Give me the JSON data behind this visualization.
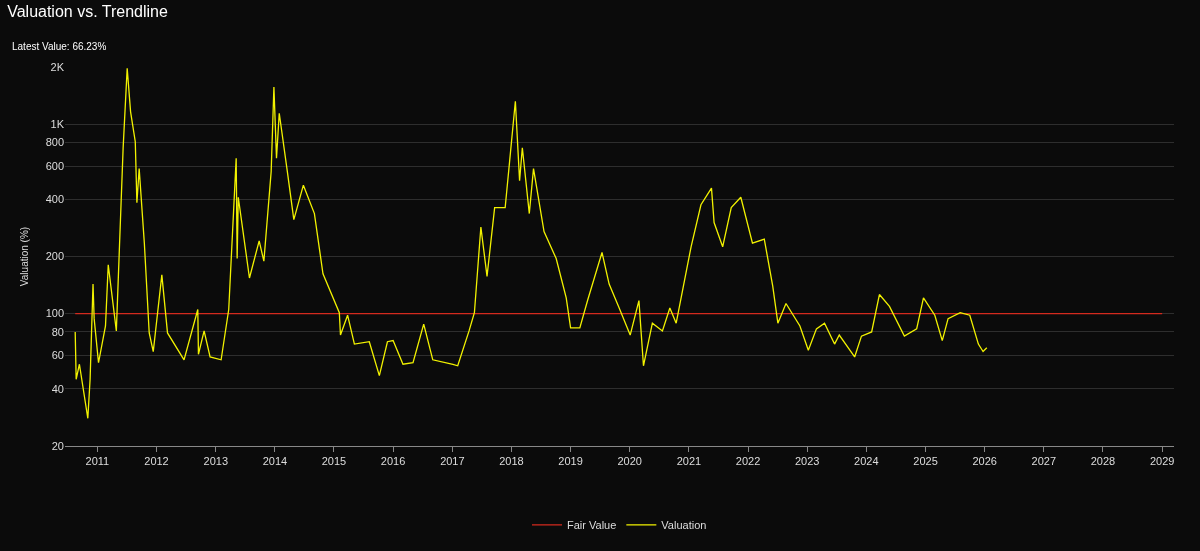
{
  "chart_data": {
    "type": "line",
    "title": "Valuation vs. Trendline",
    "subtitle": "Latest Value: 66.23%",
    "ylabel": "Valuation (%)",
    "log": "y",
    "grid": "y",
    "legend": "bottom",
    "marker": "none",
    "line_style": "solid",
    "xlim": [
      "2010-06-15",
      "2029-03-15"
    ],
    "xticks": [
      "2011",
      "2012",
      "2013",
      "2014",
      "2015",
      "2016",
      "2017",
      "2018",
      "2019",
      "2020",
      "2021",
      "2022",
      "2023",
      "2024",
      "2025",
      "2026",
      "2027",
      "2028",
      "2029"
    ],
    "ylim": [
      20,
      2000
    ],
    "yticks": [
      20,
      40,
      60,
      80,
      100,
      200,
      400,
      600,
      800,
      {
        "value": 1000,
        "label": "1K"
      },
      {
        "value": 2000,
        "label": "2K"
      }
    ],
    "series": [
      {
        "name": "Fair Value",
        "color": "#d42a1e",
        "x": [
          "2010-08-17",
          "2029-01-01"
        ],
        "values": [
          100,
          100
        ]
      },
      {
        "name": "Valuation",
        "color": "#f2f200",
        "x": [
          "2010-08-17",
          "2010-08-23",
          "2010-09-12",
          "2010-11-03",
          "2010-11-17",
          "2010-12-05",
          "2010-12-12",
          "2011-01-08",
          "2011-02-20",
          "2011-03-09",
          "2011-04-28",
          "2011-06-09",
          "2011-07-04",
          "2011-07-25",
          "2011-08-23",
          "2011-09-02",
          "2011-09-16",
          "2011-10-18",
          "2011-11-17",
          "2011-12-12",
          "2012-02-03",
          "2012-03-09",
          "2012-06-19",
          "2012-09-12",
          "2012-09-16",
          "2012-10-21",
          "2012-11-27",
          "2013-02-03",
          "2013-03-22",
          "2013-05-07",
          "2013-05-13",
          "2013-05-20",
          "2013-07-28",
          "2013-09-26",
          "2013-10-25",
          "2013-12-09",
          "2013-12-26",
          "2014-01-11",
          "2014-01-28",
          "2014-03-19",
          "2014-04-28",
          "2014-06-26",
          "2014-09-02",
          "2014-10-25",
          "2015-02-03",
          "2015-02-10",
          "2015-03-26",
          "2015-05-07",
          "2015-08-07",
          "2015-10-08",
          "2015-11-27",
          "2016-01-01",
          "2016-03-02",
          "2016-05-03",
          "2016-07-08",
          "2016-09-02",
          "2017-01-04",
          "2017-02-03",
          "2017-04-14",
          "2017-05-17",
          "2017-06-26",
          "2017-08-03",
          "2017-09-19",
          "2017-11-23",
          "2018-01-25",
          "2018-02-20",
          "2018-03-09",
          "2018-04-21",
          "2018-05-17",
          "2018-07-21",
          "2018-10-04",
          "2018-12-05",
          "2019-01-01",
          "2019-02-27",
          "2019-04-18",
          "2019-07-14",
          "2019-08-27",
          "2019-10-28",
          "2020-01-04",
          "2020-02-27",
          "2020-03-26",
          "2020-05-20",
          "2020-07-21",
          "2020-09-05",
          "2020-10-14",
          "2021-01-14",
          "2021-03-16",
          "2021-05-20",
          "2021-06-05",
          "2021-07-28",
          "2021-09-19",
          "2021-11-17",
          "2022-01-28",
          "2022-04-11",
          "2022-06-02",
          "2022-07-04",
          "2022-08-23",
          "2022-11-17",
          "2023-01-08",
          "2023-02-27",
          "2023-04-18",
          "2023-06-19",
          "2023-07-18",
          "2023-10-21",
          "2023-12-02",
          "2024-02-03",
          "2024-03-22",
          "2024-05-23",
          "2024-08-23",
          "2024-11-07",
          "2024-12-19",
          "2025-02-27",
          "2025-04-14",
          "2025-05-20",
          "2025-08-03",
          "2025-10-01",
          "2025-11-23",
          "2025-12-22",
          "2026-01-14"
        ],
        "values": [
          80,
          45,
          54,
          28,
          45,
          143,
          94,
          55,
          86,
          181,
          81,
          750,
          1970,
          1160,
          807,
          384,
          582,
          235,
          79,
          63,
          160,
          79,
          57,
          105,
          61,
          81,
          59,
          57,
          105,
          660,
          195,
          411,
          154,
          242,
          189,
          561,
          1570,
          660,
          1140,
          561,
          313,
          476,
          337,
          162,
          101,
          77,
          98,
          69,
          71,
          47,
          71,
          72,
          54,
          55,
          88,
          57,
          54,
          53,
          81,
          101,
          286,
          157,
          362,
          362,
          1320,
          503,
          750,
          337,
          582,
          271,
          195,
          121,
          84,
          84,
          119,
          210,
          143,
          107,
          77,
          117,
          53,
          89,
          81,
          107,
          89,
          225,
          375,
          459,
          302,
          225,
          362,
          411,
          235,
          247,
          140,
          89,
          113,
          86,
          64,
          83,
          89,
          69,
          77,
          59,
          76,
          80,
          126,
          109,
          76,
          83,
          121,
          98,
          72,
          94,
          101,
          98,
          69,
          63,
          66
        ]
      }
    ]
  }
}
